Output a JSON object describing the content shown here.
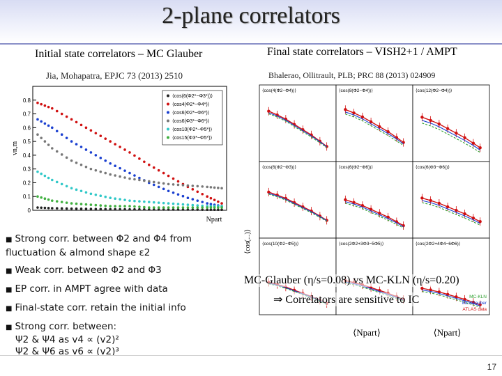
{
  "slide": {
    "title": "2-plane correlators",
    "page_number": "17"
  },
  "left_panel": {
    "heading": "Initial state correlators – MC Glauber",
    "reference": "Jia, Mohapatra,  EPJC 73 (2013) 2510"
  },
  "right_panel": {
    "heading": "Final state correlators – VISH2+1 / AMPT",
    "reference": "Bhalerao, Ollitrault, PLB; PRC 88 (2013) 024909"
  },
  "bullets": [
    "Strong  corr. between Φ2 and Φ4  from fluctuation & almond shape ε2",
    "Weak corr. between Φ2 and Φ3",
    "EP corr. in AMPT agree with data",
    "Final-state corr. retain the initial info",
    "Strong corr. between:"
  ],
  "bullet_sub": [
    "Ψ2 & Ψ4 as v4 ∝ (v2)²",
    "Ψ2 & Ψ6  as v6 ∝ (v2)³"
  ],
  "notes": {
    "line1": "MC-Glauber (η/s=0.08)  vs MC-KLN (η/s=0.20)",
    "line2": "⇒ Correlators are sensitive to IC"
  },
  "chart_data": [
    {
      "type": "scatter",
      "title": "",
      "xlabel": "Npart",
      "ylabel": "vn,m",
      "xlim": [
        0,
        400
      ],
      "ylim": [
        0,
        0.9
      ],
      "y_ticks": [
        0,
        0.1,
        0.2,
        0.3,
        0.4,
        0.5,
        0.6,
        0.7,
        0.8
      ],
      "legend_position": "top-right",
      "series": [
        {
          "name": "⟨cos(6(Φ2*−Φ3*))⟩",
          "color": "#222222",
          "x": [
            10,
            40,
            80,
            120,
            160,
            200,
            240,
            280,
            320,
            360,
            390
          ],
          "y": [
            0.02,
            0.015,
            0.012,
            0.01,
            0.008,
            0.007,
            0.006,
            0.005,
            0.005,
            0.004,
            0.004
          ]
        },
        {
          "name": "⟨cos4(Φ2*−Φ4*)⟩",
          "color": "#d01010",
          "x": [
            10,
            40,
            80,
            120,
            160,
            200,
            240,
            280,
            320,
            360,
            390
          ],
          "y": [
            0.78,
            0.74,
            0.66,
            0.58,
            0.5,
            0.42,
            0.33,
            0.25,
            0.17,
            0.1,
            0.05
          ]
        },
        {
          "name": "⟨cos6(Φ2*−Φ6*)⟩",
          "color": "#1a3fd0",
          "x": [
            10,
            40,
            80,
            120,
            160,
            200,
            240,
            280,
            320,
            360,
            390
          ],
          "y": [
            0.66,
            0.6,
            0.5,
            0.42,
            0.34,
            0.27,
            0.2,
            0.14,
            0.09,
            0.05,
            0.03
          ]
        },
        {
          "name": "⟨cos6(Φ3*−Φ6*)⟩",
          "color": "#777777",
          "x": [
            10,
            40,
            80,
            120,
            160,
            200,
            240,
            280,
            320,
            360,
            390
          ],
          "y": [
            0.55,
            0.45,
            0.36,
            0.3,
            0.26,
            0.23,
            0.21,
            0.19,
            0.18,
            0.17,
            0.16
          ]
        },
        {
          "name": "⟨cos10(Φ2*−Φ5*)⟩",
          "color": "#30c8c8",
          "x": [
            10,
            40,
            80,
            120,
            160,
            200,
            240,
            280,
            320,
            360,
            390
          ],
          "y": [
            0.28,
            0.22,
            0.16,
            0.12,
            0.09,
            0.07,
            0.06,
            0.05,
            0.04,
            0.03,
            0.03
          ]
        },
        {
          "name": "⟨cos15(Φ3*−Φ5*)⟩",
          "color": "#40b040",
          "x": [
            10,
            40,
            80,
            120,
            160,
            200,
            240,
            280,
            320,
            360,
            390
          ],
          "y": [
            0.1,
            0.07,
            0.05,
            0.04,
            0.03,
            0.03,
            0.02,
            0.02,
            0.02,
            0.02,
            0.02
          ]
        }
      ]
    },
    {
      "type": "line",
      "title": "",
      "xlabel": "⟨Npart⟩",
      "ylabel": "⟨cos(...)⟩",
      "xlim": [
        0,
        400
      ],
      "panel_labels": [
        "⟨cos(4(Φ2−Φ4))⟩",
        "⟨cos(8(Φ2−Φ4))⟩",
        "⟨cos(12(Φ2−Φ4))⟩",
        "⟨cos(6(Φ2−Φ3))⟩",
        "⟨cos(6(Φ2−Φ6))⟩",
        "⟨cos(6(Φ3−Φ6))⟩",
        "⟨cos(10(Φ2−Φ5))⟩",
        "⟨cos(2Φ2+3Φ3−5Φ5)⟩",
        "⟨cos(2Φ2+4Φ4−6Φ6)⟩"
      ],
      "legend_entries": [
        "ATLAS data",
        "MC-Glauber",
        "MC-KLN"
      ],
      "series": [
        {
          "name": "ATLAS data",
          "color": "#d01010",
          "x": [
            30,
            80,
            130,
            180,
            230,
            280,
            330,
            370
          ],
          "y": [
            0.85,
            0.78,
            0.7,
            0.6,
            0.5,
            0.4,
            0.28,
            0.18
          ]
        },
        {
          "name": "MC-Glauber",
          "color": "#1a3fd0",
          "x": [
            30,
            80,
            130,
            180,
            230,
            280,
            330,
            370
          ],
          "y": [
            0.82,
            0.76,
            0.68,
            0.58,
            0.48,
            0.38,
            0.27,
            0.17
          ]
        },
        {
          "name": "MC-KLN",
          "color": "#30a030",
          "x": [
            30,
            80,
            130,
            180,
            230,
            280,
            330,
            370
          ],
          "y": [
            0.8,
            0.74,
            0.66,
            0.56,
            0.46,
            0.36,
            0.25,
            0.16
          ]
        }
      ]
    }
  ]
}
